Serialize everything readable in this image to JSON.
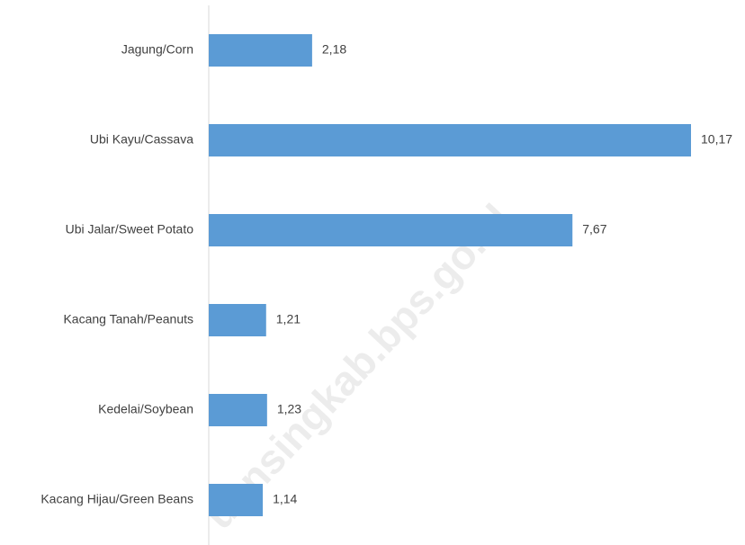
{
  "chart_data": {
    "type": "bar",
    "orientation": "horizontal",
    "categories": [
      "Jagung/Corn",
      "Ubi Kayu/Cassava",
      "Ubi Jalar/Sweet Potato",
      "Kacang Tanah/Peanuts",
      "Kedelai/Soybean",
      "Kacang Hijau/Green Beans"
    ],
    "values": [
      2.18,
      10.17,
      7.67,
      1.21,
      1.23,
      1.14
    ],
    "value_labels": [
      "2,18",
      "10,17",
      "7,67",
      "1,21",
      "1,23",
      "1,14"
    ],
    "color": "#5b9bd5"
  },
  "watermark": "uansingkab.bps.go.id"
}
